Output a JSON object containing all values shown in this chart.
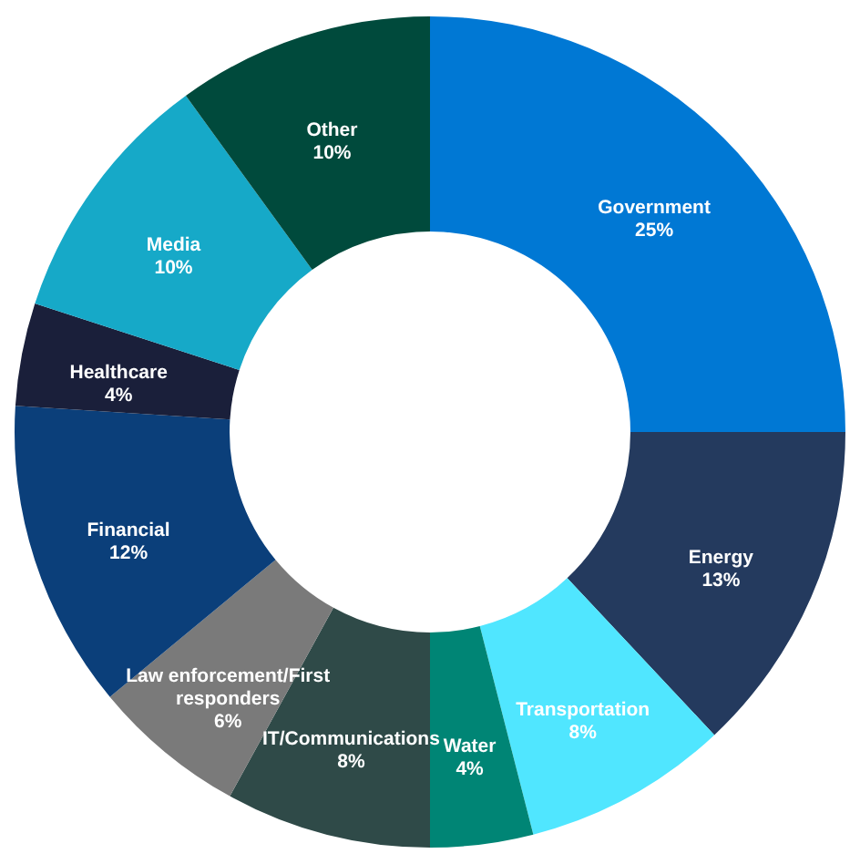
{
  "chart_data": {
    "type": "donut",
    "categories": [
      "Government",
      "Energy",
      "Transportation",
      "Water",
      "IT/Communications",
      "Law enforcement/First responders",
      "Financial",
      "Healthcare",
      "Media",
      "Other"
    ],
    "values": [
      25,
      13,
      8,
      4,
      8,
      6,
      12,
      4,
      10,
      10
    ],
    "value_labels": [
      "25%",
      "13%",
      "8%",
      "4%",
      "8%",
      "6%",
      "12%",
      "4%",
      "10%",
      "10%"
    ],
    "colors": [
      "#0078d4",
      "#243a5e",
      "#50e6ff",
      "#008575",
      "#2f4a48",
      "#7a7a7a",
      "#0b3f7a",
      "#1a1f3a",
      "#16a9c8",
      "#004a3c"
    ],
    "legend": false
  }
}
